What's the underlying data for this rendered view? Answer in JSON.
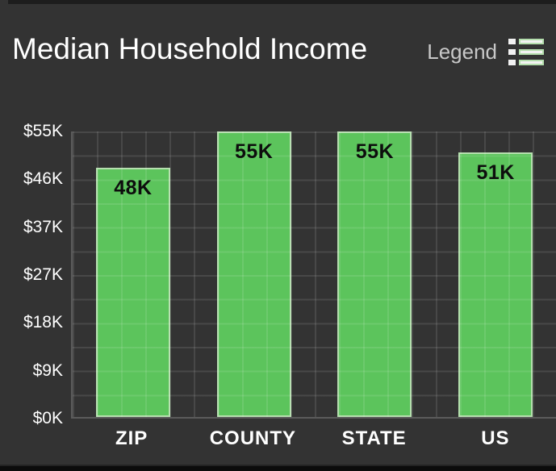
{
  "header": {
    "title": "Median Household Income",
    "legend_label": "Legend"
  },
  "icons": {
    "legend": "list-icon"
  },
  "colors": {
    "background": "#333333",
    "bar_fill": "#5cc45c",
    "bar_border": "#b5dfae",
    "bar_label_text": "#0d0d0d",
    "axis_text": "#ffffff",
    "legend_text": "#c8c8c8",
    "gridline": "rgba(255,255,255,0.10)"
  },
  "chart_data": {
    "type": "bar",
    "title": "Median Household Income",
    "categories": [
      "ZIP",
      "COUNTY",
      "STATE",
      "US"
    ],
    "values": [
      48,
      55,
      55,
      51
    ],
    "unit": "K",
    "bar_labels": [
      "48K",
      "55K",
      "55K",
      "51K"
    ],
    "y_ticks": [
      "$55K",
      "$46K",
      "$37K",
      "$27K",
      "$18K",
      "$9K",
      "$0K"
    ],
    "ylim": [
      0,
      55
    ],
    "xlabel": "",
    "ylabel": "",
    "grid": true,
    "legend_position": "top-right"
  }
}
